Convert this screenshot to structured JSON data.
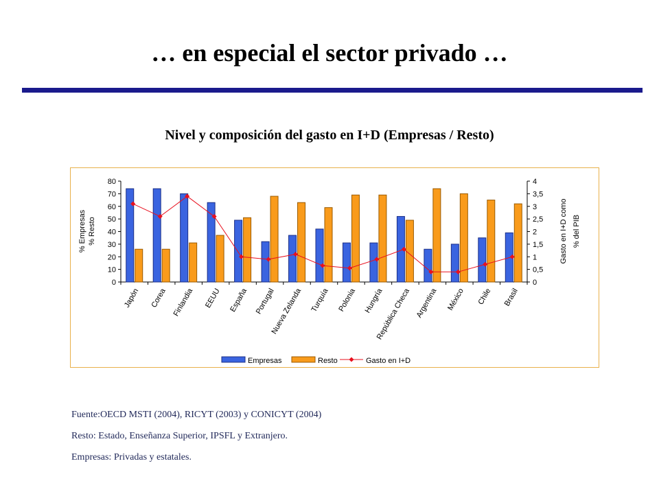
{
  "slide": {
    "title": "… en especial el sector privado …",
    "rule_color": "#1a1a8c"
  },
  "chart_heading": "Nivel y composición del gasto en I+D (Empresas / Resto)",
  "chart_data": {
    "type": "bar",
    "categories": [
      "Japón",
      "Corea",
      "Finlandia",
      "EEUU",
      "España",
      "Portugal",
      "Nueva Zelanda",
      "Turquía",
      "Polonia",
      "Hungría",
      "República Checa",
      "Argentina",
      "México",
      "Chile",
      "Brasil"
    ],
    "series": [
      {
        "name": "Empresas",
        "type": "bar",
        "axis": "left",
        "color": "#3a64e0",
        "values": [
          74,
          74,
          70,
          63,
          49,
          32,
          37,
          42,
          31,
          31,
          52,
          26,
          30,
          35,
          39
        ]
      },
      {
        "name": "Resto",
        "type": "bar",
        "axis": "left",
        "color": "#f99b1b",
        "values": [
          26,
          26,
          31,
          37,
          51,
          68,
          63,
          59,
          69,
          69,
          49,
          74,
          70,
          65,
          62
        ]
      },
      {
        "name": "Gasto en I+D",
        "type": "line",
        "axis": "right",
        "color": "#e8101e",
        "values": [
          3.1,
          2.6,
          3.4,
          2.6,
          1.0,
          0.9,
          1.1,
          0.65,
          0.55,
          0.9,
          1.3,
          0.4,
          0.4,
          0.7,
          1.0
        ]
      }
    ],
    "ylabel_left": [
      "% Empresas",
      "% Resto"
    ],
    "ylabel_right": [
      "Gasto en I+D como",
      "% del PIB"
    ],
    "ylim_left": [
      0,
      80
    ],
    "ylim_right": [
      0,
      4
    ],
    "yticks_left": [
      "0",
      "10",
      "20",
      "30",
      "40",
      "50",
      "60",
      "70",
      "80"
    ],
    "yticks_right": [
      "0",
      "0,5",
      "1",
      "1,5",
      "2",
      "2,5",
      "3",
      "3,5",
      "4"
    ],
    "grid": false,
    "legend_position": "bottom"
  },
  "notes": {
    "source": "Fuente:OECD MSTI (2004), RICYT (2003) y CONICYT (2004)",
    "resto_def": "Resto: Estado, Enseñanza Superior, IPSFL y Extranjero.",
    "empresas_def": "Empresas: Privadas y estatales."
  }
}
